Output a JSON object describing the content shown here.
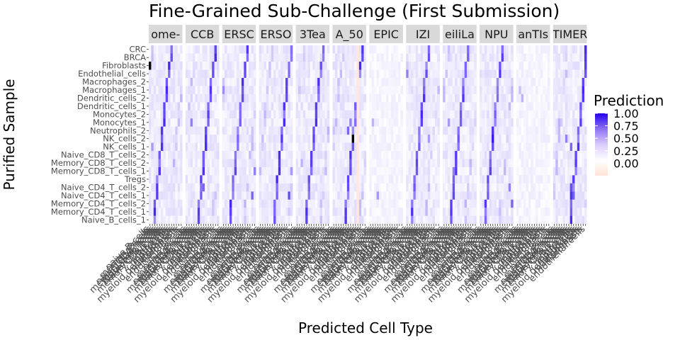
{
  "chart_data": {
    "type": "heatmap",
    "title": "Fine-Grained Sub-Challenge (First Submission)",
    "xlabel": "Predicted Cell Type",
    "ylabel": "Purified Sample",
    "legend": {
      "title": "Prediction",
      "ticks": [
        "1.00",
        "0.75",
        "0.50",
        "0.25",
        "0.00"
      ],
      "tick_values": [
        1.0,
        0.75,
        0.5,
        0.25,
        0.0
      ],
      "colors": {
        "low": "#ffe4d6",
        "mid": "#ffffff",
        "high": "#2200ee"
      },
      "placement": "right"
    },
    "panels": [
      {
        "label": "ome-",
        "diag_shift": 2,
        "extra": [
          [
            19,
            0,
            1.0
          ],
          [
            6,
            4,
            0.8
          ],
          [
            9,
            1,
            0.4
          ]
        ]
      },
      {
        "label": "CCB",
        "diag_shift": 5,
        "extra": [
          [
            4,
            7,
            0.6
          ],
          [
            12,
            2,
            0.5
          ]
        ]
      },
      {
        "label": "ERSC",
        "diag_shift": 3,
        "extra": [
          [
            3,
            12,
            0.6
          ],
          [
            6,
            13,
            0.5
          ],
          [
            16,
            0,
            0.45
          ]
        ]
      },
      {
        "label": "ERSO",
        "diag_shift": 6,
        "extra": [
          [
            3,
            12,
            0.7
          ],
          [
            6,
            13,
            0.4
          ]
        ]
      },
      {
        "label": "3Tea",
        "diag_shift": 4,
        "extra": [
          [
            7,
            2,
            0.3
          ]
        ]
      },
      {
        "label": "A_50",
        "diag_shift": 5,
        "extra": [
          [
            10,
            8,
            1.0
          ],
          [
            11,
            6,
            0.6
          ],
          [
            12,
            7,
            0.5
          ]
        ],
        "neg_col": 10
      },
      {
        "label": "EPIC",
        "diag_shift": 0,
        "sparse": true,
        "extra": [
          [
            3,
            3,
            0.4
          ],
          [
            12,
            1,
            0.3
          ]
        ]
      },
      {
        "label": "IZI",
        "diag_shift": 2,
        "extra": [
          [
            18,
            0,
            0.5
          ],
          [
            10,
            9,
            0.4
          ]
        ]
      },
      {
        "label": "eiliLa",
        "diag_shift": 3,
        "extra": [
          [
            6,
            4,
            0.5
          ],
          [
            12,
            2,
            0.4
          ]
        ]
      },
      {
        "label": "NPU",
        "diag_shift": 2,
        "extra": [
          [
            10,
            5,
            0.9
          ],
          [
            2,
            13,
            0.6
          ],
          [
            4,
            12,
            0.5
          ]
        ]
      },
      {
        "label": "anTIs",
        "diag_shift": 0,
        "sparse": true,
        "extra": [
          [
            15,
            2,
            0.3
          ],
          [
            16,
            1,
            0.25
          ]
        ]
      },
      {
        "label": "TIMER",
        "diag_shift": 7,
        "extra": [
          [
            3,
            7,
            0.8
          ],
          [
            4,
            7,
            0.7
          ],
          [
            9,
            7,
            0.6
          ],
          [
            10,
            5,
            0.5
          ],
          [
            12,
            2,
            0.3
          ]
        ]
      }
    ],
    "rows": [
      "Naive_B_cells_1",
      "Memory_CD4_T_cells_1",
      "Memory_CD4_T_cells_2",
      "Naive_CD4_T_cells_1",
      "Naive_CD4_T_cells_2",
      "Tregs",
      "Memory_CD8_T_cells_1",
      "Memory_CD8_T_cells_2",
      "Naive_CD8_T_cells_2",
      "NK_cells_1",
      "NK_cells_2",
      "Neutrophils_2",
      "Monocytes_1",
      "Monocytes_2",
      "Dendritic_cells_1",
      "Dendritic_cells_2",
      "Macrophages_1",
      "Macrophages_2",
      "Endothelial_cells",
      "Fibroblasts",
      "BRCA",
      "CRC"
    ],
    "columns": [
      "naive.B.cells",
      "memory.B.cells",
      "naive.CD4.T.cells",
      "memory.CD4.T.cells",
      "regulatory.T.cells",
      "naive.CD8.T.cells",
      "memory.CD8.T.cells",
      "NK.cells",
      "neutrophils",
      "monocytes",
      "myeloid.dendritic.cells",
      "macrophages",
      "fibroblasts",
      "endothelial.cells"
    ]
  }
}
